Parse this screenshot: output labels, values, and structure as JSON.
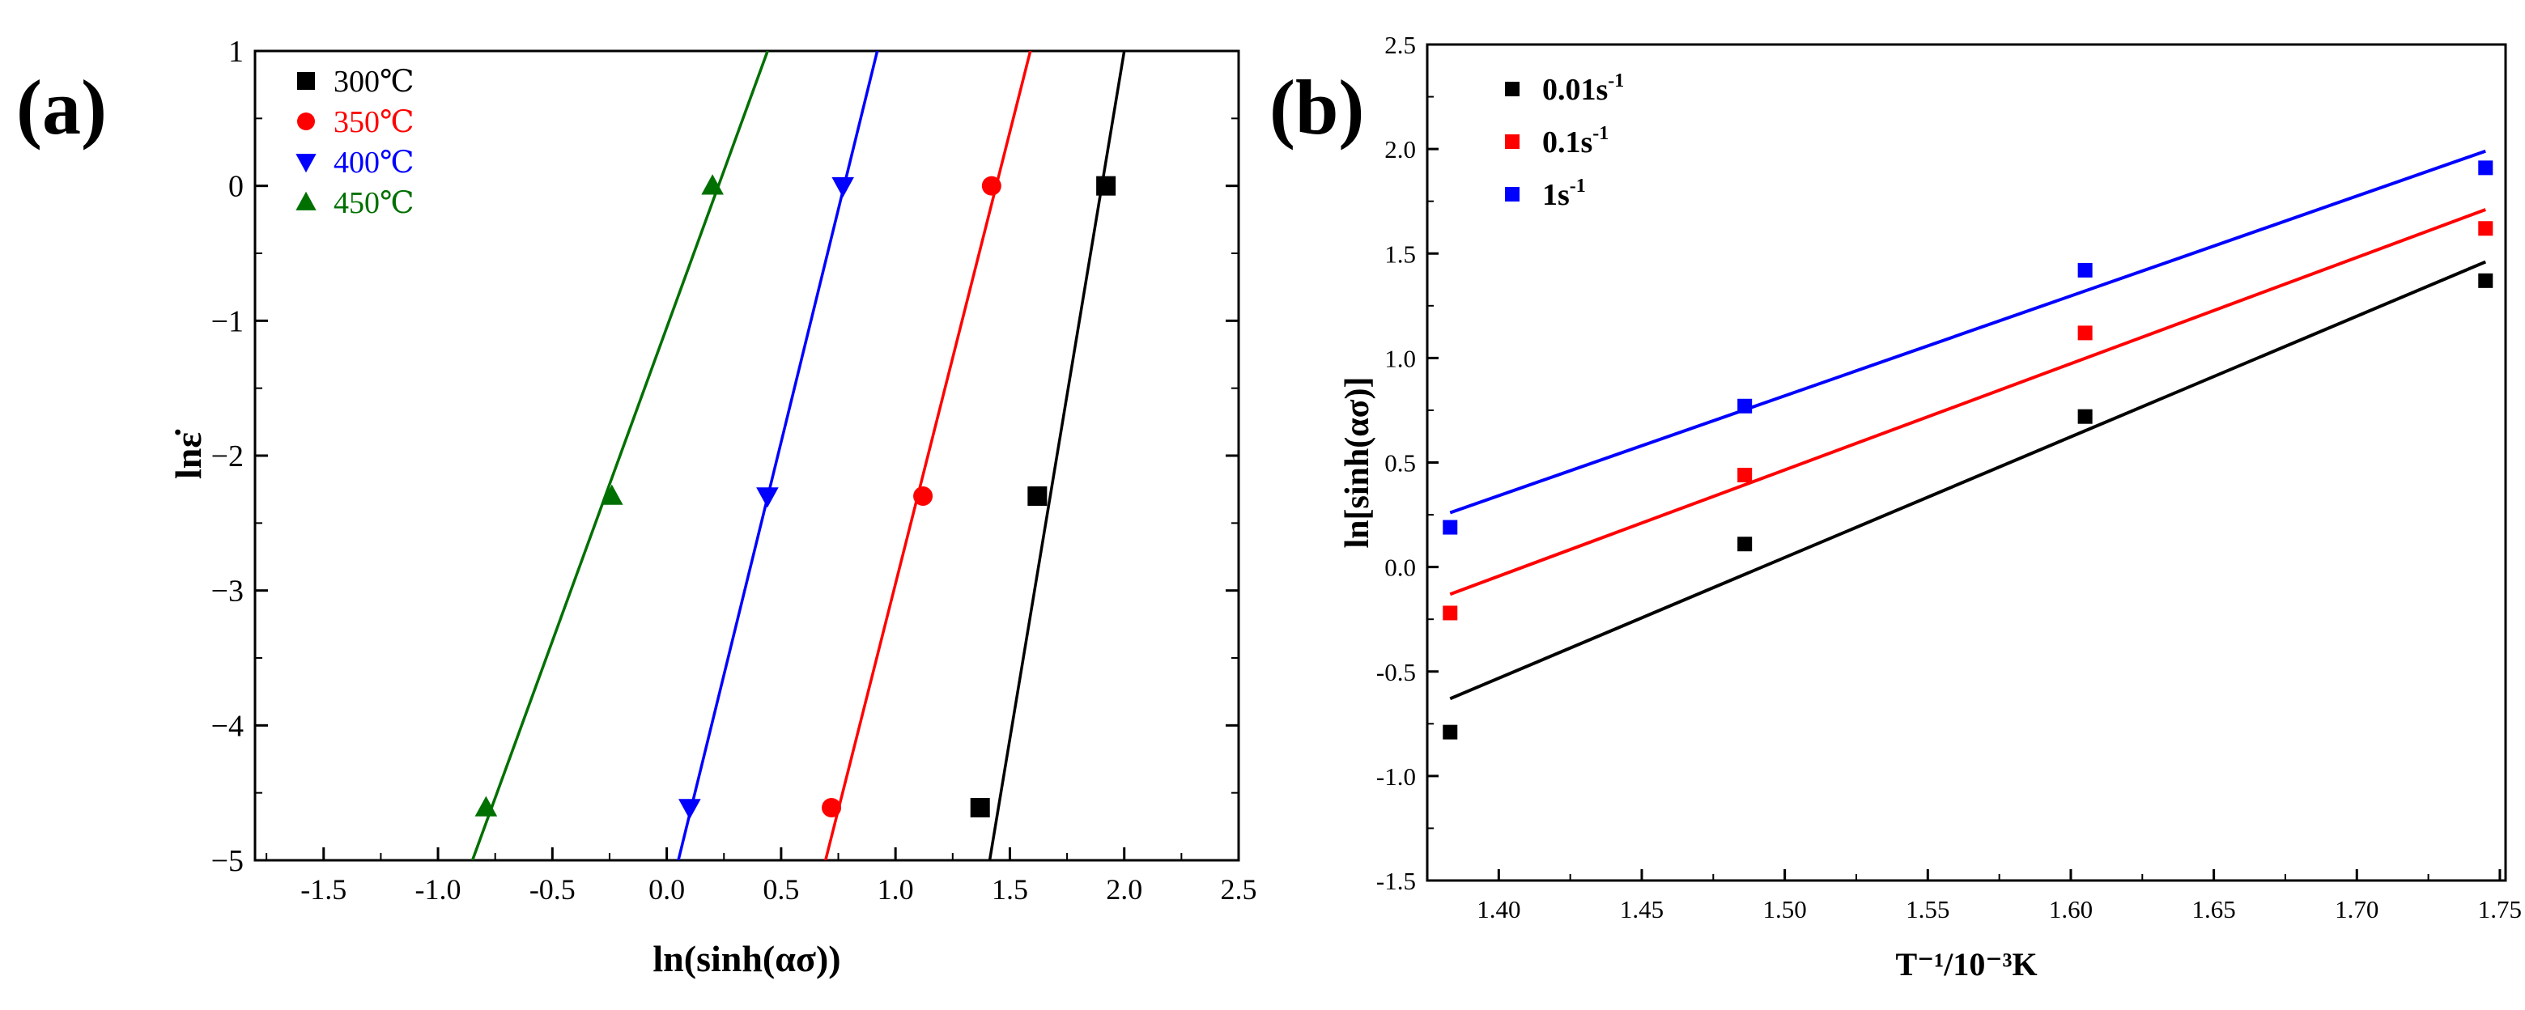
{
  "figure": {
    "panel_a_label": "(a)",
    "panel_b_label": "(b)"
  },
  "chart_data": [
    {
      "type": "scatter",
      "panel": "a",
      "title": "",
      "xlabel": "ln(sinh(ασ))",
      "ylabel": "lnε̇",
      "xlim": [
        -1.8,
        2.5
      ],
      "ylim": [
        -5,
        1
      ],
      "xticks": [
        "-1.5",
        "-1.0",
        "-0.5",
        "0.0",
        "0.5",
        "1.0",
        "1.5",
        "2.0",
        "2.5"
      ],
      "xtick_values": [
        -1.5,
        -1.0,
        -0.5,
        0.0,
        0.5,
        1.0,
        1.5,
        2.0,
        2.5
      ],
      "yticks": [
        "1",
        "0",
        "−1",
        "−2",
        "−3",
        "−4",
        "−5"
      ],
      "ytick_values": [
        1,
        0,
        -1,
        -2,
        -3,
        -4,
        -5
      ],
      "legend_position": "top-left",
      "series": [
        {
          "name": "300℃",
          "color": "#000000",
          "marker": "square",
          "x": [
            1.37,
            1.62,
            1.92
          ],
          "y": [
            -4.61,
            -2.3,
            0.0
          ],
          "fit": {
            "slope": 10.2,
            "intercept": -19.4
          }
        },
        {
          "name": "350℃",
          "color": "#ff0000",
          "marker": "circle",
          "x": [
            0.72,
            1.12,
            1.42
          ],
          "y": [
            -4.61,
            -2.3,
            0.0
          ],
          "fit": {
            "slope": 6.7,
            "intercept": -9.65
          }
        },
        {
          "name": "400℃",
          "color": "#0000ff",
          "marker": "triangle-down",
          "x": [
            0.1,
            0.44,
            0.77
          ],
          "y": [
            -4.61,
            -2.3,
            0.0
          ],
          "fit": {
            "slope": 6.9,
            "intercept": -5.35
          }
        },
        {
          "name": "450℃",
          "color": "#007000",
          "marker": "triangle-up",
          "x": [
            -0.79,
            -0.24,
            0.2
          ],
          "y": [
            -4.61,
            -2.3,
            0.0
          ],
          "fit": {
            "slope": 4.65,
            "intercept": -1.05
          }
        }
      ]
    },
    {
      "type": "scatter",
      "panel": "b",
      "title": "",
      "xlabel": "T⁻¹/10⁻³K",
      "ylabel": "ln[sinh(ασ)]",
      "xlim": [
        1.375,
        1.752
      ],
      "ylim": [
        -1.5,
        2.5
      ],
      "xticks": [
        "1.40",
        "1.45",
        "1.50",
        "1.55",
        "1.60",
        "1.65",
        "1.70",
        "1.75"
      ],
      "xtick_values": [
        1.4,
        1.45,
        1.5,
        1.55,
        1.6,
        1.65,
        1.7,
        1.75
      ],
      "yticks": [
        "2.5",
        "2.0",
        "1.5",
        "1.0",
        "0.5",
        "0.0",
        "-0.5",
        "-1.0",
        "-1.5"
      ],
      "ytick_values": [
        2.5,
        2.0,
        1.5,
        1.0,
        0.5,
        0.0,
        -0.5,
        -1.0,
        -1.5
      ],
      "legend_position": "top-left",
      "series": [
        {
          "name": "0.01s",
          "exponent": "-1",
          "color": "#000000",
          "marker": "square",
          "x": [
            1.383,
            1.486,
            1.605,
            1.745
          ],
          "y": [
            -0.79,
            0.11,
            0.72,
            1.37
          ],
          "fit": {
            "x": [
              1.383,
              1.745
            ],
            "y": [
              -0.63,
              1.46
            ]
          }
        },
        {
          "name": "0.1s",
          "exponent": "-1",
          "color": "#ff0000",
          "marker": "square",
          "x": [
            1.383,
            1.486,
            1.605,
            1.745
          ],
          "y": [
            -0.22,
            0.44,
            1.12,
            1.62
          ],
          "fit": {
            "x": [
              1.383,
              1.745
            ],
            "y": [
              -0.13,
              1.71
            ]
          }
        },
        {
          "name": "1s",
          "exponent": "-1",
          "color": "#0000ff",
          "marker": "square",
          "x": [
            1.383,
            1.486,
            1.605,
            1.745
          ],
          "y": [
            0.19,
            0.77,
            1.42,
            1.91
          ],
          "fit": {
            "x": [
              1.383,
              1.745
            ],
            "y": [
              0.26,
              1.99
            ]
          }
        }
      ]
    }
  ]
}
